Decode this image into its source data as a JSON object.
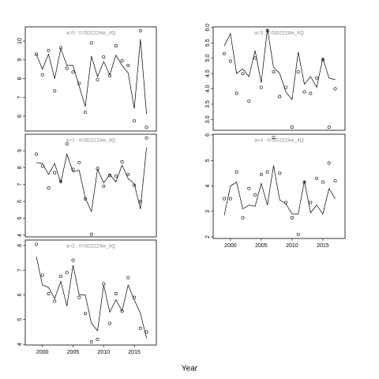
{
  "xlabel": "Year",
  "chart_data": [
    {
      "type": "line",
      "title": "a=0  :  f=SD2224w_4Q",
      "x": [
        1999,
        2000,
        2001,
        2002,
        2003,
        2004,
        2005,
        2006,
        2007,
        2008,
        2009,
        2010,
        2011,
        2012,
        2013,
        2014,
        2015,
        2016,
        2017
      ],
      "series": [
        {
          "style": "points",
          "color": "#000000",
          "values": [
            9.3,
            8.2,
            9.5,
            7.35,
            9.65,
            8.55,
            8.35,
            7.75,
            6.2,
            9.9,
            7.95,
            9.15,
            8.15,
            9.75,
            8.95,
            8.7,
            5.75,
            10.55,
            5.4
          ]
        },
        {
          "style": "line",
          "color": "#000000",
          "values": [
            9.3,
            8.5,
            9.3,
            8.0,
            9.6,
            8.7,
            8.7,
            7.6,
            6.5,
            9.2,
            8.1,
            8.9,
            8.2,
            9.25,
            8.7,
            8.3,
            6.4,
            10.1,
            6.1
          ]
        }
      ],
      "xlim": [
        1997.2,
        2018.6
      ],
      "ylim": [
        5.2,
        10.76
      ],
      "yticks": [
        6,
        7,
        8,
        9,
        10
      ]
    },
    {
      "type": "line",
      "title": "a=1  :  f=SD2224w_4Q",
      "x": [
        1999,
        2000,
        2001,
        2002,
        2003,
        2004,
        2005,
        2006,
        2007,
        2008,
        2009,
        2010,
        2011,
        2012,
        2013,
        2014,
        2015,
        2016,
        2017
      ],
      "series": [
        {
          "style": "points",
          "color": "#000000",
          "values": [
            8.8,
            8.1,
            6.8,
            7.7,
            7.2,
            9.4,
            7.9,
            8.3,
            6.15,
            4.05,
            7.95,
            6.9,
            7.55,
            7.5,
            8.35,
            7.6,
            6.95,
            6.0,
            9.75
          ]
        },
        {
          "style": "line",
          "color": "#000000",
          "values": [
            8.3,
            8.25,
            7.6,
            8.25,
            7.1,
            8.8,
            7.75,
            7.85,
            6.2,
            5.4,
            7.9,
            7.1,
            7.6,
            7.15,
            8.15,
            7.35,
            7.05,
            5.55,
            9.2
          ]
        }
      ],
      "xlim": [
        1997.2,
        2018.6
      ],
      "ylim": [
        3.9,
        9.98
      ],
      "yticks": [
        4,
        5,
        6,
        7,
        8,
        9
      ]
    },
    {
      "type": "line",
      "title": "a=2  :  f=SD2224w_4Q",
      "x": [
        1999,
        2000,
        2001,
        2002,
        2003,
        2004,
        2005,
        2006,
        2007,
        2008,
        2009,
        2010,
        2011,
        2012,
        2013,
        2014,
        2015,
        2016,
        2017
      ],
      "series": [
        {
          "style": "points",
          "color": "#000000",
          "values": [
            8.05,
            6.8,
            6.05,
            5.75,
            6.75,
            6.9,
            7.4,
            5.9,
            5.25,
            4.1,
            4.2,
            6.45,
            4.85,
            6.05,
            5.35,
            6.7,
            5.9,
            4.65,
            4.5
          ]
        },
        {
          "style": "line",
          "color": "#000000",
          "values": [
            7.55,
            6.4,
            6.3,
            5.85,
            6.55,
            5.55,
            7.2,
            6.0,
            6.0,
            4.85,
            4.55,
            6.4,
            5.3,
            5.8,
            5.35,
            6.4,
            5.8,
            5.25,
            4.25
          ]
        }
      ],
      "xlim": [
        1997.2,
        2018.6
      ],
      "ylim": [
        3.97,
        8.22
      ],
      "yticks": [
        4,
        5,
        6,
        7,
        8
      ],
      "xticks": [
        2000,
        2005,
        2010,
        2015
      ]
    },
    {
      "type": "line",
      "title": "a=3  :  f=SD2224w_4Q",
      "x": [
        1999,
        2000,
        2001,
        2002,
        2003,
        2004,
        2005,
        2006,
        2007,
        2008,
        2009,
        2010,
        2011,
        2012,
        2013,
        2014,
        2015,
        2016,
        2017
      ],
      "series": [
        {
          "style": "points",
          "color": "#000000",
          "values": [
            5.15,
            4.9,
            3.85,
            4.5,
            3.6,
            5.0,
            4.05,
            5.9,
            4.55,
            3.75,
            4.05,
            2.75,
            4.55,
            3.9,
            3.85,
            4.35,
            4.95,
            2.75,
            4.0
          ]
        },
        {
          "style": "line",
          "color": "#000000",
          "values": [
            5.4,
            5.8,
            4.5,
            4.65,
            4.4,
            5.25,
            4.2,
            5.95,
            4.7,
            4.5,
            3.9,
            3.65,
            5.2,
            4.15,
            4.4,
            4.05,
            5.0,
            4.35,
            4.3
          ]
        }
      ],
      "xlim": [
        1997.2,
        2018.6
      ],
      "ylim": [
        2.65,
        6.02
      ],
      "yticks": [
        {
          "value": 3,
          "label": "3.0"
        },
        3.5,
        {
          "value": 4,
          "label": "4.0"
        },
        4.5,
        {
          "value": 5,
          "label": "5.0"
        },
        5.5,
        {
          "value": 6,
          "label": "6.0"
        }
      ]
    },
    {
      "type": "line",
      "title": "a=4  :  f=SD2224w_4Q",
      "x": [
        1999,
        2000,
        2001,
        2002,
        2003,
        2004,
        2005,
        2006,
        2007,
        2008,
        2009,
        2010,
        2011,
        2012,
        2013,
        2014,
        2015,
        2016,
        2017
      ],
      "series": [
        {
          "style": "points",
          "color": "#000000",
          "values": [
            3.5,
            3.5,
            4.55,
            2.75,
            3.9,
            3.65,
            4.45,
            4.55,
            5.9,
            4.5,
            3.35,
            2.75,
            2.1,
            4.15,
            3.35,
            4.3,
            4.15,
            4.9,
            4.2
          ]
        },
        {
          "style": "line",
          "color": "#000000",
          "values": [
            2.85,
            4.0,
            4.15,
            3.1,
            3.25,
            3.2,
            4.1,
            3.25,
            4.8,
            3.45,
            3.3,
            2.9,
            2.9,
            4.2,
            2.95,
            3.25,
            2.9,
            3.9,
            3.5
          ]
        }
      ],
      "xlim": [
        1997.2,
        2018.6
      ],
      "ylim": [
        1.94,
        6.03
      ],
      "yticks": [
        2,
        3,
        4,
        5,
        6
      ],
      "xticks": [
        2000,
        2005,
        2010,
        2015
      ]
    }
  ]
}
